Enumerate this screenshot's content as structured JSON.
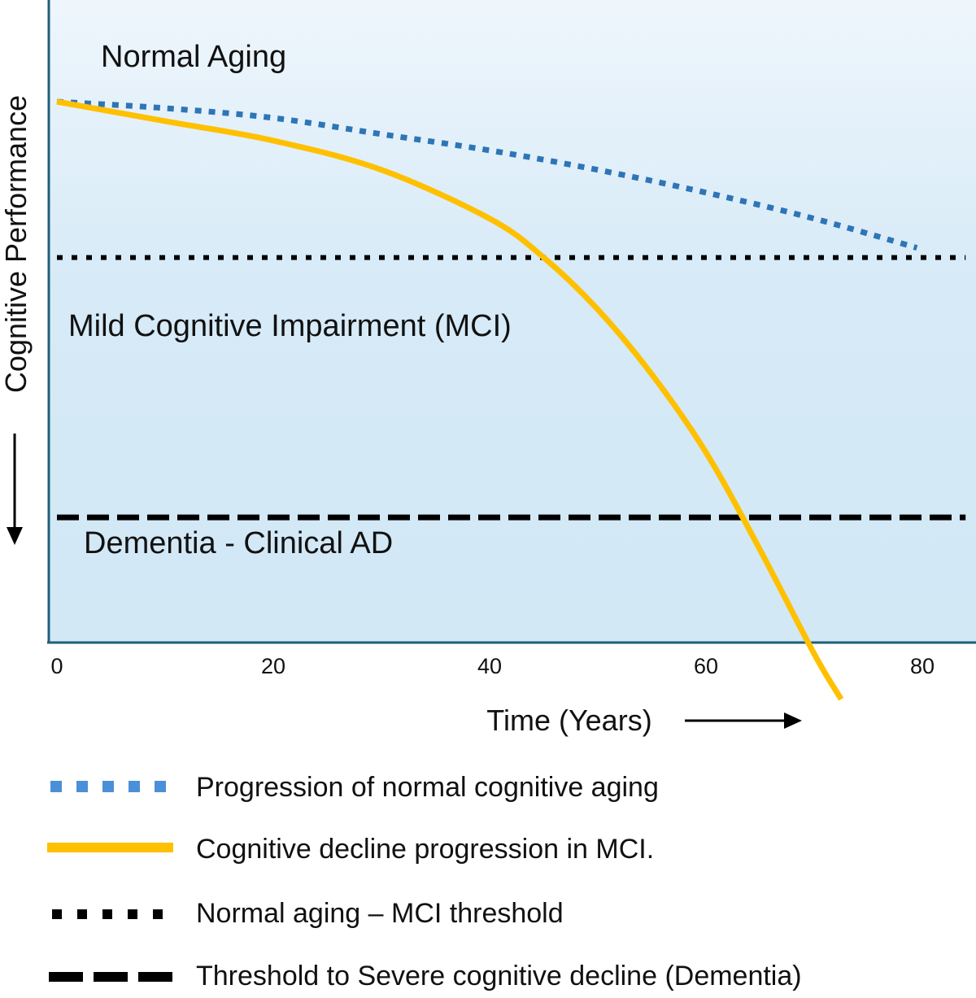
{
  "chart_data": {
    "type": "line",
    "xlabel": "Time (Years)",
    "ylabel": "Cognitive Performance",
    "xlim": [
      0,
      84
    ],
    "x_ticks": [
      0,
      20,
      40,
      60,
      80
    ],
    "zones": [
      {
        "label": "Normal Aging"
      },
      {
        "label": "Mild Cognitive Impairment (MCI)"
      },
      {
        "label": "Dementia - Clinical AD"
      }
    ],
    "colors": {
      "normal_aging": "#2e75b6",
      "mci_decline": "#ffc000",
      "threshold": "#000000",
      "frame": "#1f5f7a"
    },
    "series": [
      {
        "name": "Progression of normal cognitive aging",
        "style": "dotted",
        "x": [
          0,
          10,
          20,
          30,
          40,
          50,
          60,
          70,
          79.5
        ],
        "y": [
          0.84,
          0.83,
          0.815,
          0.79,
          0.765,
          0.735,
          0.7,
          0.66,
          0.615
        ]
      },
      {
        "name": "Cognitive decline progression in MCI.",
        "style": "solid",
        "x": [
          0,
          10,
          20,
          30,
          40,
          45,
          50,
          55,
          60,
          65,
          70,
          72.5
        ],
        "y": [
          0.84,
          0.81,
          0.78,
          0.735,
          0.66,
          0.6,
          0.52,
          0.42,
          0.3,
          0.15,
          -0.01,
          -0.08
        ]
      },
      {
        "name": "Normal aging – MCI threshold",
        "style": "dotted-black",
        "x": [
          0,
          84
        ],
        "y": [
          0.6,
          0.6
        ]
      },
      {
        "name": "Threshold to Severe cognitive decline (Dementia)",
        "style": "dashed-black",
        "x": [
          0,
          84
        ],
        "y": [
          0.2,
          0.2
        ]
      }
    ]
  }
}
